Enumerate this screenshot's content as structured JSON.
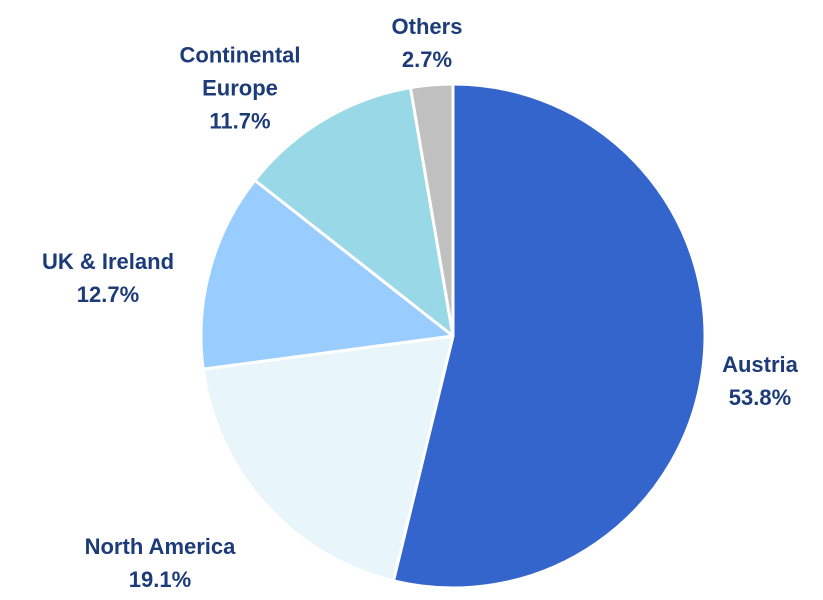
{
  "chart_data": {
    "type": "pie",
    "categories": [
      "Austria",
      "North America",
      "UK & Ireland",
      "Continental Europe",
      "Others"
    ],
    "values": [
      53.8,
      19.1,
      12.7,
      11.7,
      2.7
    ],
    "value_labels": [
      "53.8%",
      "19.1%",
      "12.7%",
      "11.7%",
      "2.7%"
    ],
    "colors": [
      "#3465cc",
      "#e8f5fa",
      "#99ccff",
      "#99d8e6",
      "#c0c0c0"
    ]
  }
}
